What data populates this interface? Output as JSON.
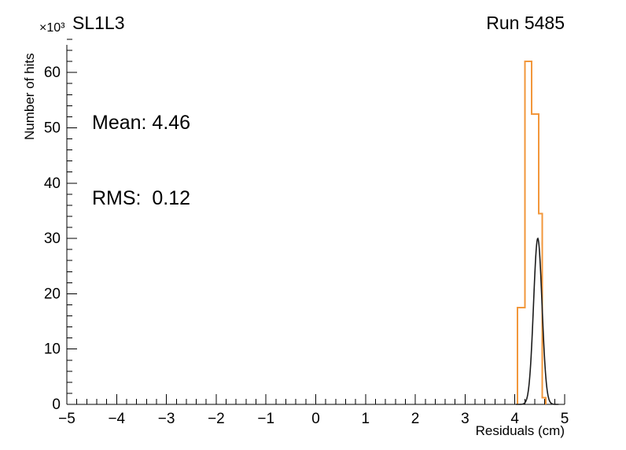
{
  "titles": {
    "left": "SL1L3",
    "right": "Run 5485"
  },
  "stats": {
    "mean": "Mean: 4.46",
    "rms": "RMS:  0.12"
  },
  "axes": {
    "x": {
      "label": "Residuals (cm)",
      "min": -5,
      "max": 5,
      "minor_step": 0.2,
      "major_ticks": [
        {
          "v": -5,
          "label": "−5"
        },
        {
          "v": -4,
          "label": "−4"
        },
        {
          "v": -3,
          "label": "−3"
        },
        {
          "v": -2,
          "label": "−2"
        },
        {
          "v": -1,
          "label": "−1"
        },
        {
          "v": 0,
          "label": "0"
        },
        {
          "v": 1,
          "label": "1"
        },
        {
          "v": 2,
          "label": "2"
        },
        {
          "v": 3,
          "label": "3"
        },
        {
          "v": 4,
          "label": "4"
        },
        {
          "v": 5,
          "label": "5"
        }
      ]
    },
    "y": {
      "label": "Number of hits",
      "multiplier": "×10³",
      "min": 0,
      "max": 65,
      "minor_step": 2,
      "major_ticks": [
        {
          "v": 0,
          "label": "0"
        },
        {
          "v": 10,
          "label": "10"
        },
        {
          "v": 20,
          "label": "20"
        },
        {
          "v": 30,
          "label": "30"
        },
        {
          "v": 40,
          "label": "40"
        },
        {
          "v": 50,
          "label": "50"
        },
        {
          "v": 60,
          "label": "60"
        }
      ]
    }
  },
  "colors": {
    "histogram": "#f2973b",
    "fit": "#1b1b1b",
    "axis": "#000000"
  },
  "chart_data": {
    "type": "line",
    "title": "SL1L3",
    "subtitle": "Run 5485",
    "xlabel": "Residuals (cm)",
    "ylabel": "Number of hits",
    "y_units": "×10³ hits",
    "xlim": [
      -5,
      5
    ],
    "ylim": [
      0,
      65
    ],
    "grid": false,
    "legend": "none",
    "annotations": [
      "Mean: 4.46",
      "RMS:  0.12"
    ],
    "series": [
      {
        "name": "residuals-histogram",
        "type": "step-histogram",
        "color": "#f2973b",
        "bins": [
          {
            "x0": 4.05,
            "x1": 4.2,
            "y": 17.5
          },
          {
            "x0": 4.2,
            "x1": 4.34,
            "y": 62.0
          },
          {
            "x0": 4.34,
            "x1": 4.48,
            "y": 52.5
          },
          {
            "x0": 4.48,
            "x1": 4.55,
            "y": 34.5
          },
          {
            "x0": 4.55,
            "x1": 4.62,
            "y": 1.2
          }
        ]
      },
      {
        "name": "gaussian-fit",
        "type": "gaussian",
        "color": "#1b1b1b",
        "mean": 4.46,
        "sigma": 0.085,
        "amplitude": 30,
        "draw_range": [
          4.02,
          4.88
        ]
      }
    ]
  }
}
